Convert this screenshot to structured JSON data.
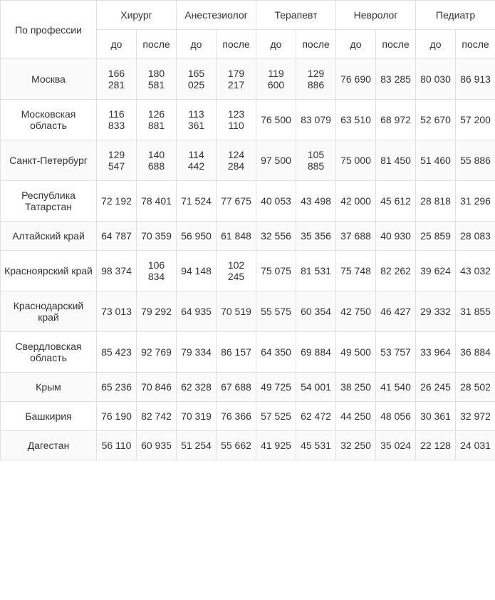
{
  "type": "table",
  "colors": {
    "border": "#e0e0e0",
    "text": "#333333",
    "row_alt_bg": "#fafafa",
    "row_bg": "#ffffff"
  },
  "typography": {
    "font_family": "Arial",
    "font_size_pt": 11,
    "font_weight": "normal"
  },
  "header": {
    "row_label": "По профессии",
    "groups": [
      "Хирург",
      "Анестезиолог",
      "Терапевт",
      "Невролог",
      "Педиатр"
    ],
    "sub": [
      "до",
      "после"
    ]
  },
  "rows": [
    {
      "region": "Москва",
      "cells": [
        "166 281",
        "180 581",
        "165 025",
        "179 217",
        "119 600",
        "129 886",
        "76 690",
        "83 285",
        "80 030",
        "86 913"
      ]
    },
    {
      "region": "Московская область",
      "cells": [
        "116 833",
        "126 881",
        "113 361",
        "123 110",
        "76 500",
        "83 079",
        "63 510",
        "68 972",
        "52 670",
        "57 200"
      ]
    },
    {
      "region": "Санкт-Петербург",
      "cells": [
        "129 547",
        "140 688",
        "114 442",
        "124 284",
        "97 500",
        "105 885",
        "75 000",
        "81 450",
        "51 460",
        "55 886"
      ]
    },
    {
      "region": "Республика Татарстан",
      "cells": [
        "72 192",
        "78 401",
        "71 524",
        "77 675",
        "40 053",
        "43 498",
        "42 000",
        "45 612",
        "28 818",
        "31 296"
      ]
    },
    {
      "region": "Алтайский край",
      "cells": [
        "64 787",
        "70 359",
        "56 950",
        "61 848",
        "32 556",
        "35 356",
        "37 688",
        "40 930",
        "25 859",
        "28 083"
      ]
    },
    {
      "region": "Красноярский край",
      "cells": [
        "98 374",
        "106 834",
        "94 148",
        "102 245",
        "75 075",
        "81 531",
        "75 748",
        "82 262",
        "39 624",
        "43 032"
      ]
    },
    {
      "region": "Краснодарский край",
      "cells": [
        "73 013",
        "79 292",
        "64 935",
        "70 519",
        "55 575",
        "60 354",
        "42 750",
        "46 427",
        "29 332",
        "31 855"
      ]
    },
    {
      "region": "Свердловская область",
      "cells": [
        "85 423",
        "92 769",
        "79 334",
        "86 157",
        "64 350",
        "69 884",
        "49 500",
        "53 757",
        "33 964",
        "36 884"
      ]
    },
    {
      "region": "Крым",
      "cells": [
        "65 236",
        "70 846",
        "62 328",
        "67 688",
        "49 725",
        "54 001",
        "38 250",
        "41 540",
        "26 245",
        "28 502"
      ]
    },
    {
      "region": "Башкирия",
      "cells": [
        "76 190",
        "82 742",
        "70 319",
        "76 366",
        "57 525",
        "62 472",
        "44 250",
        "48 056",
        "30 361",
        "32 972"
      ]
    },
    {
      "region": "Дагестан",
      "cells": [
        "56 110",
        "60 935",
        "51 254",
        "55 662",
        "41 925",
        "45 531",
        "32 250",
        "35 024",
        "22 128",
        "24 031"
      ]
    }
  ]
}
